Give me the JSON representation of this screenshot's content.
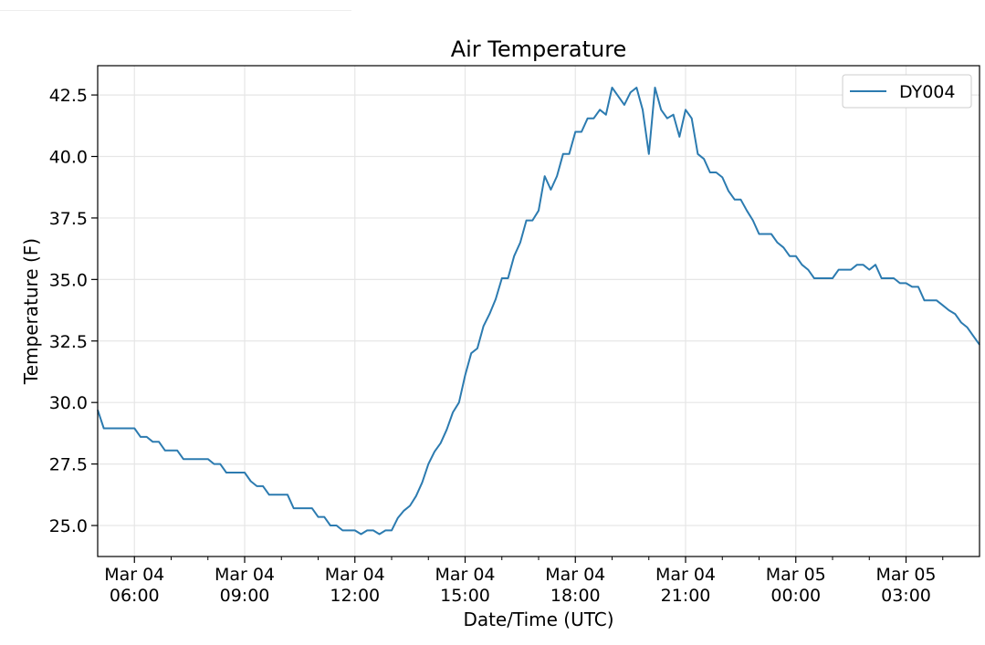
{
  "chart_data": {
    "type": "line",
    "title": "Air Temperature",
    "xlabel": "Date/Time (UTC)",
    "ylabel": "Temperature (F)",
    "x_start": "Mar 04 05:00",
    "x_step_minutes": 10,
    "x_range_hours": [
      0,
      24
    ],
    "ylim": [
      23.74,
      43.69
    ],
    "grid": true,
    "legend_position": "top-right",
    "x_ticks": [
      {
        "hour": 1,
        "label_date": "Mar 04",
        "label_time": "06:00"
      },
      {
        "hour": 4,
        "label_date": "Mar 04",
        "label_time": "09:00"
      },
      {
        "hour": 7,
        "label_date": "Mar 04",
        "label_time": "12:00"
      },
      {
        "hour": 10,
        "label_date": "Mar 04",
        "label_time": "15:00"
      },
      {
        "hour": 13,
        "label_date": "Mar 04",
        "label_time": "18:00"
      },
      {
        "hour": 16,
        "label_date": "Mar 04",
        "label_time": "21:00"
      },
      {
        "hour": 19,
        "label_date": "Mar 05",
        "label_time": "00:00"
      },
      {
        "hour": 22,
        "label_date": "Mar 05",
        "label_time": "03:00"
      }
    ],
    "y_ticks": [
      {
        "value": 25.0,
        "label": "25.0"
      },
      {
        "value": 27.5,
        "label": "27.5"
      },
      {
        "value": 30.0,
        "label": "30.0"
      },
      {
        "value": 32.5,
        "label": "32.5"
      },
      {
        "value": 35.0,
        "label": "35.0"
      },
      {
        "value": 37.5,
        "label": "37.5"
      },
      {
        "value": 40.0,
        "label": "40.0"
      },
      {
        "value": 42.5,
        "label": "42.5"
      }
    ],
    "series": [
      {
        "name": "DY004",
        "color": "#2c7bb0",
        "values": [
          29.7,
          28.95,
          28.95,
          28.95,
          28.95,
          28.95,
          28.95,
          28.6,
          28.6,
          28.4,
          28.4,
          28.05,
          28.05,
          28.05,
          27.7,
          27.7,
          27.7,
          27.7,
          27.7,
          27.5,
          27.5,
          27.15,
          27.15,
          27.15,
          27.15,
          26.8,
          26.6,
          26.6,
          26.25,
          26.25,
          26.25,
          26.25,
          25.7,
          25.7,
          25.7,
          25.7,
          25.35,
          25.35,
          25.0,
          25.0,
          24.8,
          24.8,
          24.8,
          24.65,
          24.8,
          24.8,
          24.65,
          24.8,
          24.8,
          25.3,
          25.6,
          25.8,
          26.2,
          26.75,
          27.5,
          28.0,
          28.35,
          28.9,
          29.6,
          30.0,
          31.1,
          32.0,
          32.2,
          33.1,
          33.6,
          34.2,
          35.05,
          35.05,
          35.95,
          36.5,
          37.4,
          37.4,
          37.8,
          39.2,
          38.65,
          39.2,
          40.1,
          40.1,
          41.0,
          41.0,
          41.55,
          41.55,
          41.9,
          41.7,
          42.8,
          42.45,
          42.1,
          42.6,
          42.8,
          41.9,
          40.1,
          42.8,
          41.9,
          41.55,
          41.7,
          40.8,
          41.9,
          41.55,
          40.1,
          39.9,
          39.35,
          39.35,
          39.15,
          38.6,
          38.25,
          38.25,
          37.8,
          37.4,
          36.85,
          36.85,
          36.85,
          36.5,
          36.3,
          35.95,
          35.95,
          35.6,
          35.4,
          35.05,
          35.05,
          35.05,
          35.05,
          35.4,
          35.4,
          35.4,
          35.6,
          35.6,
          35.4,
          35.6,
          35.05,
          35.05,
          35.05,
          34.85,
          34.85,
          34.7,
          34.7,
          34.15,
          34.15,
          34.15,
          33.95,
          33.75,
          33.6,
          33.25,
          33.05,
          32.7,
          32.35
        ]
      }
    ]
  }
}
